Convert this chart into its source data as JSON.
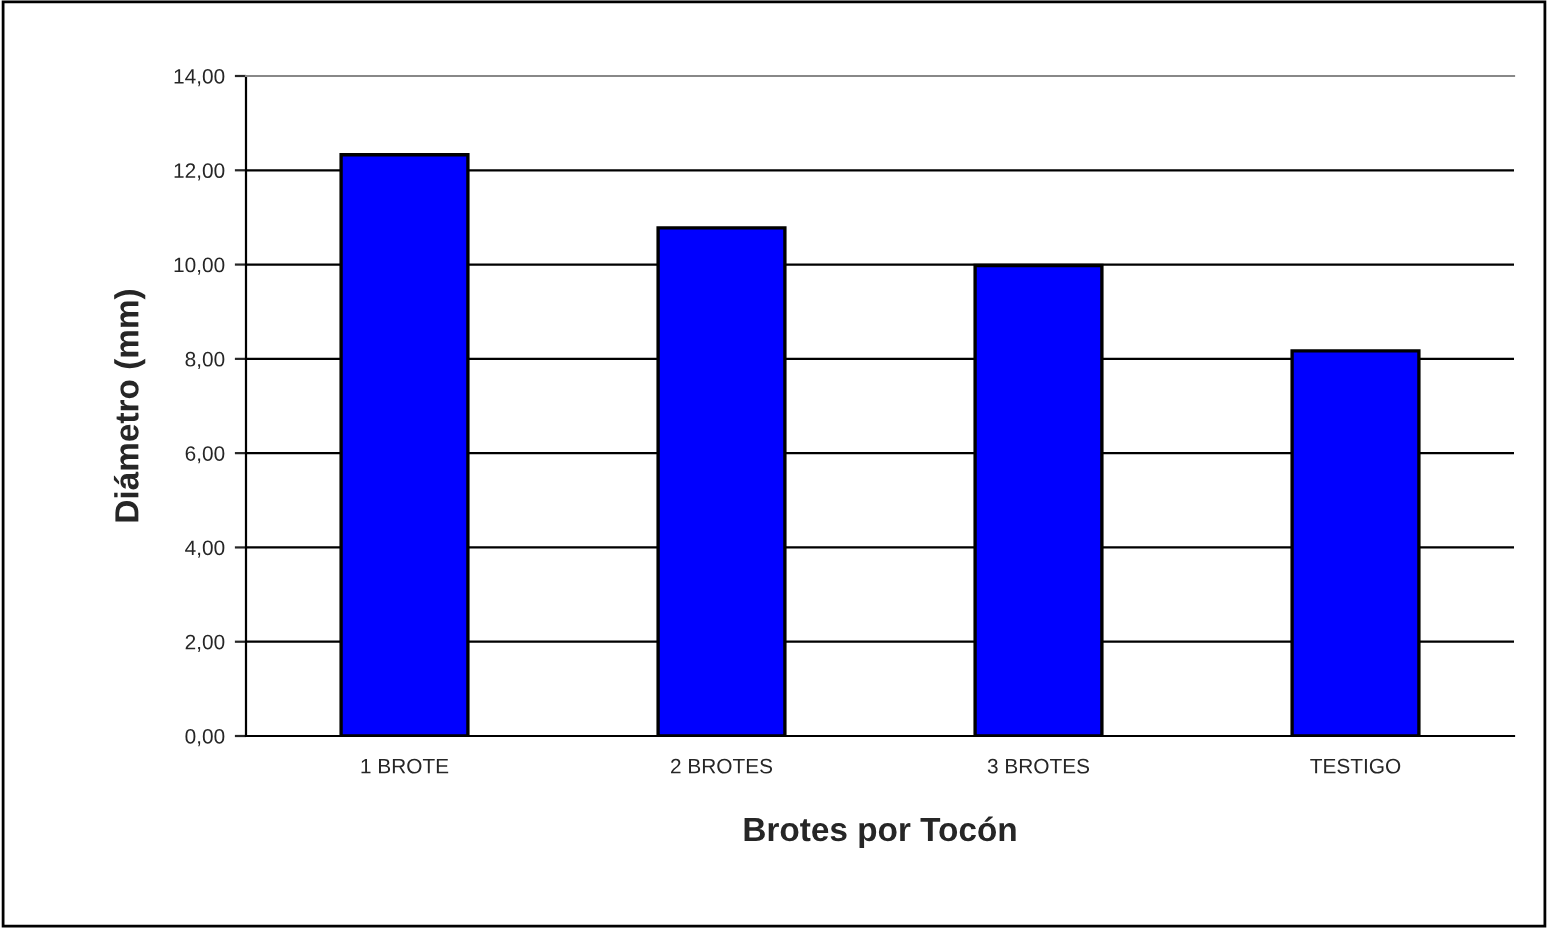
{
  "chart_data": {
    "type": "bar",
    "xlabel": "Brotes por Tocón",
    "ylabel": "Diámetro (mm)",
    "categories": [
      "1 BROTE",
      "2 BROTES",
      "3 BROTES",
      "TESTIGO"
    ],
    "series": [
      {
        "color": "#0000ff",
        "values": [
          12.33,
          10.78,
          9.98,
          8.17
        ]
      }
    ],
    "ylim": [
      0,
      14
    ],
    "yticks": [
      {
        "value": 0,
        "label": "0,00"
      },
      {
        "value": 2,
        "label": "2,00"
      },
      {
        "value": 4,
        "label": "4,00"
      },
      {
        "value": 6,
        "label": "6,00"
      },
      {
        "value": 8,
        "label": "8,00"
      },
      {
        "value": 10,
        "label": "10,00"
      },
      {
        "value": 12,
        "label": "12,00"
      },
      {
        "value": 14,
        "label": "14,00"
      }
    ],
    "grid": "y",
    "legend": false
  }
}
